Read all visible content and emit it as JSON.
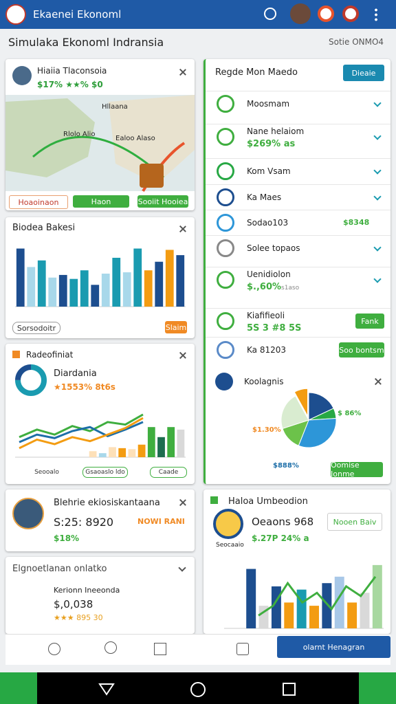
{
  "app_bar": {
    "title": "Ekaenei Ekonoml"
  },
  "header": {
    "title": "Simulaka Ekonoml Indransia",
    "search": "Sotie ONMO4"
  },
  "profile_card": {
    "name": "Hiaiia Tlaconsoia",
    "stats": "$17% ★★% $0",
    "map_labels": [
      "Hllaana",
      "Rlolo Alio",
      "Ealoo Alaso"
    ],
    "buttons": [
      "Hoaoinaon",
      "Haon",
      "Sooiit Hooiea"
    ]
  },
  "bar_card": {
    "title": "Biodea Bakesi",
    "ylim": [
      0,
      100
    ],
    "values": [
      88,
      60,
      70,
      44,
      48,
      42,
      55,
      33,
      50,
      74,
      52,
      88,
      55,
      68,
      86,
      78
    ],
    "colors": [
      "#1d4e8f",
      "#a8d8ea",
      "#1a9bb0",
      "#a8d8ea",
      "#1d4e8f",
      "#1a9bb0",
      "#1a9bb0",
      "#1d4e8f",
      "#a8d8ea",
      "#1a9bb0",
      "#a8d8ea",
      "#1a9bb0",
      "#f39c12",
      "#1d4e8f",
      "#f39c12",
      "#1d4e8f"
    ],
    "link": "Sorsodoitr",
    "button": "Slaim"
  },
  "trend_card": {
    "title": "Radeofiniat",
    "donut": {
      "values": [
        75,
        25
      ],
      "colors": [
        "#1a9bb0",
        "#1d4e8f"
      ]
    },
    "name": "Diardania",
    "stats": "★1553% 8t6s",
    "ylim": [
      0,
      100
    ],
    "bars": {
      "values": [
        12,
        8,
        20,
        18,
        16,
        25,
        60,
        40,
        60,
        55
      ],
      "colors": [
        "#fde0b8",
        "#a8d8ea",
        "#fde0b8",
        "#f39c12",
        "#fde0b8",
        "#f39c12",
        "#3fae3f",
        "#1d6e4f",
        "#3fae3f",
        "#d9d9d9"
      ]
    },
    "lines": [
      {
        "color": "#3fae3f",
        "values": [
          40,
          55,
          45,
          62,
          52,
          70,
          65,
          85
        ]
      },
      {
        "color": "#1d6ea8",
        "values": [
          30,
          45,
          38,
          52,
          60,
          42,
          55,
          70
        ]
      },
      {
        "color": "#f39c12",
        "values": [
          18,
          35,
          26,
          40,
          32,
          45,
          58,
          78
        ]
      }
    ],
    "legend": [
      "Seooalo",
      "Gsaoaslo ldo",
      "Caade"
    ]
  },
  "person_card": {
    "name": "Blehrie ekiosiskantaana",
    "amount": "S:25: 8920",
    "tag": "NOWI RANI",
    "change": "$18%"
  },
  "summary_card": {
    "title": "Elgnoetlanan onlatko",
    "name": "Kerionn Ineeonda",
    "amount": "$,0,038",
    "rating": "★★★  895 30"
  },
  "region_card": {
    "title": "Regde Mon Maedo",
    "button": "Dieaie",
    "rows": [
      {
        "label": "Moosmam"
      },
      {
        "label": "Nane helaiom",
        "sub": "$269% as"
      },
      {
        "label": "Kom Vsam"
      },
      {
        "label": "Ka Maes"
      },
      {
        "label": "Sodao103",
        "value": "$8348"
      },
      {
        "label": "Solee topaos"
      },
      {
        "label": "Uenidiolon",
        "sub": "$.,60%",
        "note": "s1aso"
      },
      {
        "label": "Kiafifieoli",
        "sub": "5S 3 #8 5S",
        "button": "Fank"
      },
      {
        "label": "Ka 81203",
        "button": "Soo bontsm"
      }
    ],
    "pie": {
      "title": "Koolagnis",
      "values": [
        18,
        6,
        32,
        14,
        22,
        8
      ],
      "colors": [
        "#1d4e8f",
        "#27a844",
        "#2d96d8",
        "#6cc24a",
        "#d9ecd0",
        "#f39c12"
      ],
      "labels": [
        "$ 86%",
        "$1.30%",
        "$888%"
      ],
      "button": "Oomise Ionme"
    }
  },
  "stat_card": {
    "title": "Haloa Umbeodion",
    "value": "Oeaons 968",
    "change": "$.27P 24% a",
    "button": "Nooen Baiv",
    "caption": "Seocaaio",
    "ylim": [
      0,
      100
    ],
    "bars": {
      "values": [
        92,
        35,
        65,
        40,
        60,
        35,
        70,
        80,
        40,
        55,
        98
      ],
      "colors": [
        "#1d4e8f",
        "#d9d9d9",
        "#1d4e8f",
        "#f39c12",
        "#1a9bb0",
        "#f39c12",
        "#1d4e8f",
        "#a8c8e8",
        "#f39c12",
        "#d9d9d9",
        "#a8d8a0"
      ]
    },
    "line": {
      "color": "#3fae3f",
      "values": [
        20,
        35,
        70,
        40,
        55,
        30,
        65,
        50,
        80
      ]
    }
  },
  "bottom_nav": {
    "button": "olarnt Henagran"
  }
}
